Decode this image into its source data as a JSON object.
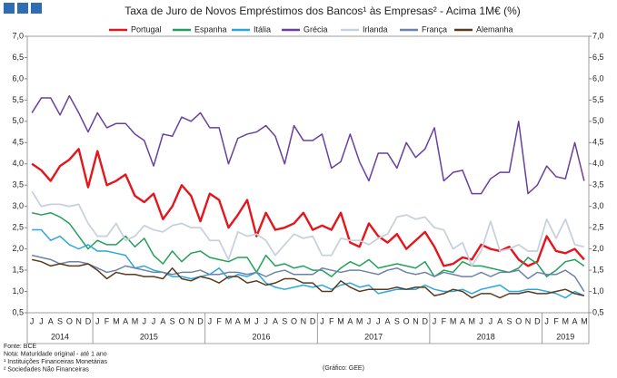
{
  "chart_data": {
    "type": "line",
    "title": "Taxa de Juro de Novos Empréstimos dos Bancos¹ às Empresas² - Acima 1M€ (%)",
    "categories": [
      "J",
      "J",
      "A",
      "S",
      "O",
      "N",
      "D",
      "J",
      "F",
      "M",
      "A",
      "M",
      "J",
      "J",
      "A",
      "S",
      "O",
      "N",
      "D",
      "J",
      "F",
      "M",
      "A",
      "M",
      "J",
      "J",
      "A",
      "S",
      "O",
      "N",
      "D",
      "J",
      "F",
      "M",
      "A",
      "M",
      "J",
      "J",
      "A",
      "S",
      "O",
      "N",
      "D",
      "J",
      "F",
      "M",
      "A",
      "M",
      "J",
      "J",
      "A",
      "S",
      "O",
      "N",
      "D",
      "J",
      "F",
      "M",
      "A",
      "M"
    ],
    "years": [
      "2014",
      "2015",
      "2016",
      "2017",
      "2018",
      "2019"
    ],
    "series": [
      {
        "name": "Portugal",
        "color": "#e3161d",
        "width": 2.4,
        "values": [
          4.0,
          3.85,
          3.6,
          3.95,
          4.1,
          4.35,
          3.45,
          4.3,
          3.5,
          3.6,
          3.75,
          3.25,
          3.1,
          3.3,
          2.7,
          3.0,
          3.5,
          3.25,
          2.65,
          3.3,
          3.15,
          2.5,
          2.8,
          3.15,
          2.3,
          2.85,
          2.45,
          2.5,
          2.6,
          2.85,
          2.45,
          2.55,
          2.45,
          2.85,
          2.15,
          2.05,
          2.6,
          2.3,
          2.15,
          2.35,
          2.0,
          2.2,
          2.4,
          2.05,
          1.6,
          1.65,
          1.8,
          1.75,
          2.1,
          2.0,
          1.95,
          2.05,
          1.75,
          1.6,
          1.7,
          2.3,
          1.95,
          1.9,
          2.0,
          1.75
        ]
      },
      {
        "name": "Espanha",
        "color": "#23a05a",
        "width": 1.5,
        "values": [
          2.85,
          2.8,
          2.85,
          2.75,
          2.6,
          2.3,
          2.0,
          2.2,
          2.1,
          2.1,
          2.3,
          2.05,
          2.25,
          1.85,
          1.65,
          1.95,
          1.7,
          1.9,
          1.95,
          1.8,
          1.75,
          1.7,
          1.8,
          1.8,
          1.45,
          1.85,
          1.6,
          1.65,
          1.55,
          1.6,
          1.5,
          1.5,
          1.35,
          1.55,
          1.7,
          1.6,
          1.75,
          1.55,
          1.6,
          1.65,
          1.6,
          1.55,
          1.7,
          1.35,
          1.5,
          1.45,
          1.7,
          1.6,
          1.6,
          1.55,
          1.5,
          1.45,
          1.55,
          1.8,
          1.65,
          1.35,
          1.5,
          1.7,
          1.75,
          1.6
        ]
      },
      {
        "name": "Itália",
        "color": "#2aa7df",
        "width": 1.5,
        "values": [
          2.45,
          2.45,
          2.2,
          2.3,
          2.1,
          2.0,
          2.1,
          1.95,
          1.95,
          1.9,
          1.85,
          1.55,
          1.6,
          1.5,
          1.45,
          1.35,
          1.35,
          1.3,
          1.35,
          1.4,
          1.55,
          1.3,
          1.4,
          1.35,
          1.45,
          1.2,
          1.1,
          1.05,
          1.1,
          1.15,
          1.1,
          1.15,
          1.05,
          1.15,
          1.2,
          1.1,
          1.15,
          0.95,
          1.0,
          1.05,
          1.05,
          1.05,
          1.15,
          1.05,
          1.0,
          1.0,
          1.05,
          0.95,
          1.05,
          1.1,
          1.15,
          1.0,
          1.0,
          1.05,
          1.05,
          1.0,
          0.95,
          0.85,
          1.0,
          0.9
        ]
      },
      {
        "name": "Grécia",
        "color": "#6a3f9e",
        "width": 1.5,
        "values": [
          5.2,
          5.55,
          5.55,
          5.15,
          5.6,
          5.2,
          4.75,
          5.2,
          4.85,
          4.95,
          4.95,
          4.7,
          4.55,
          3.95,
          4.7,
          4.65,
          5.1,
          5.0,
          5.2,
          4.85,
          4.85,
          4.0,
          4.6,
          4.7,
          4.75,
          4.9,
          4.65,
          4.0,
          4.9,
          4.55,
          4.55,
          4.7,
          3.9,
          4.05,
          4.7,
          4.05,
          3.6,
          4.25,
          4.25,
          3.9,
          4.5,
          4.15,
          4.35,
          4.85,
          3.6,
          3.8,
          3.85,
          3.3,
          3.3,
          3.65,
          3.8,
          3.8,
          5.0,
          3.3,
          3.5,
          3.95,
          3.7,
          3.65,
          4.5,
          3.6
        ]
      },
      {
        "name": "Irlanda",
        "color": "#c9d1dd",
        "width": 1.8,
        "values": [
          3.35,
          3.0,
          3.05,
          3.05,
          3.0,
          3.05,
          2.6,
          2.3,
          2.3,
          2.6,
          2.2,
          2.3,
          2.55,
          2.45,
          2.4,
          2.55,
          2.6,
          2.5,
          2.5,
          2.2,
          2.2,
          1.75,
          2.4,
          2.3,
          2.35,
          2.2,
          1.85,
          2.1,
          2.35,
          2.25,
          2.3,
          1.85,
          1.85,
          2.25,
          2.2,
          2.2,
          2.1,
          2.25,
          2.35,
          2.75,
          2.8,
          2.7,
          2.75,
          2.5,
          2.45,
          2.0,
          2.15,
          1.6,
          1.95,
          2.65,
          1.95,
          2.0,
          2.1,
          1.95,
          1.95,
          2.7,
          2.25,
          2.7,
          2.1,
          2.05
        ]
      },
      {
        "name": "França",
        "color": "#6b82aa",
        "width": 1.5,
        "values": [
          1.85,
          1.8,
          1.75,
          1.65,
          1.7,
          1.7,
          1.65,
          1.55,
          1.45,
          1.5,
          1.6,
          1.55,
          1.5,
          1.45,
          1.45,
          1.4,
          1.45,
          1.45,
          1.5,
          1.4,
          1.4,
          1.45,
          1.45,
          1.4,
          1.45,
          1.35,
          1.45,
          1.5,
          1.4,
          1.4,
          1.4,
          1.55,
          1.5,
          1.45,
          1.5,
          1.5,
          1.45,
          1.4,
          1.5,
          1.55,
          1.45,
          1.4,
          1.45,
          1.35,
          1.45,
          1.4,
          1.35,
          1.35,
          1.45,
          1.35,
          1.45,
          1.45,
          1.5,
          1.3,
          1.45,
          1.4,
          1.4,
          1.5,
          1.35,
          1.0
        ]
      },
      {
        "name": "Alemanha",
        "color": "#5b3b1c",
        "width": 1.5,
        "values": [
          1.75,
          1.7,
          1.6,
          1.65,
          1.6,
          1.6,
          1.65,
          1.5,
          1.3,
          1.45,
          1.4,
          1.4,
          1.35,
          1.35,
          1.3,
          1.55,
          1.3,
          1.25,
          1.35,
          1.3,
          1.2,
          1.35,
          1.35,
          1.2,
          1.25,
          1.15,
          1.2,
          1.3,
          1.3,
          1.2,
          1.2,
          1.0,
          1.0,
          1.25,
          1.1,
          1.0,
          1.05,
          1.05,
          1.05,
          1.1,
          1.05,
          1.1,
          1.1,
          0.9,
          0.95,
          1.05,
          1.0,
          0.85,
          0.95,
          0.95,
          0.85,
          0.95,
          0.95,
          1.0,
          0.95,
          0.95,
          1.0,
          1.05,
          0.95,
          0.9
        ]
      }
    ],
    "ylim": [
      0.5,
      7.0
    ],
    "yticks": [
      {
        "value": 0.5,
        "label": "0,5"
      },
      {
        "value": 1.0,
        "label": "1,0"
      },
      {
        "value": 1.5,
        "label": "1,5"
      },
      {
        "value": 2.0,
        "label": "2,0"
      },
      {
        "value": 2.5,
        "label": "2,5"
      },
      {
        "value": 3.0,
        "label": "3,0"
      },
      {
        "value": 3.5,
        "label": "3,5"
      },
      {
        "value": 4.0,
        "label": "4,0"
      },
      {
        "value": 4.5,
        "label": "4,5"
      },
      {
        "value": 5.0,
        "label": "5,0"
      },
      {
        "value": 5.5,
        "label": "5,5"
      },
      {
        "value": 6.0,
        "label": "6,0"
      },
      {
        "value": 6.5,
        "label": "6,5"
      },
      {
        "value": 7.0,
        "label": "7,0"
      }
    ],
    "y2lim": [
      0.5,
      7.0
    ],
    "y2ticks": [
      {
        "value": 0.5,
        "label": "0,5"
      },
      {
        "value": 1.0,
        "label": "1,0"
      },
      {
        "value": 1.5,
        "label": "1,5"
      },
      {
        "value": 2.0,
        "label": "2,0"
      },
      {
        "value": 2.5,
        "label": "2,5"
      },
      {
        "value": 3.0,
        "label": "3,0"
      },
      {
        "value": 3.5,
        "label": "3,5"
      },
      {
        "value": 4.0,
        "label": "4,0"
      },
      {
        "value": 4.5,
        "label": "4,5"
      },
      {
        "value": 5.0,
        "label": "5,0"
      },
      {
        "value": 5.5,
        "label": "5,5"
      },
      {
        "value": 6.0,
        "label": "6,0"
      },
      {
        "value": 6.5,
        "label": "6,5"
      },
      {
        "value": 7.0,
        "label": "7,0"
      }
    ],
    "grid": false,
    "legend": "top",
    "notes": [
      "Fonte: BCE",
      "Nota: Maturidade original - até 1 ano",
      "¹ Instituições Financeiras Monetárias",
      "² Sociedades Não Financeiras"
    ],
    "credit": "(Gráfico: GEE)"
  }
}
